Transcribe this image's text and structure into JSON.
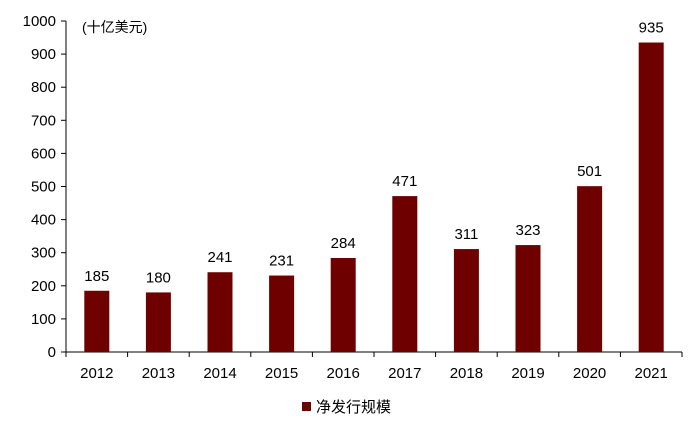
{
  "chart_data": {
    "type": "bar",
    "unit_label": "(十亿美元)",
    "categories": [
      "2012",
      "2013",
      "2014",
      "2015",
      "2016",
      "2017",
      "2018",
      "2019",
      "2020",
      "2021"
    ],
    "series": [
      {
        "name": "净发行规模",
        "values": [
          185,
          180,
          241,
          231,
          284,
          471,
          311,
          323,
          501,
          935
        ],
        "color": "#6e0000"
      }
    ],
    "ylim": [
      0,
      1000
    ],
    "yticks": [
      0,
      100,
      200,
      300,
      400,
      500,
      600,
      700,
      800,
      900,
      1000
    ],
    "grid": false,
    "legend_position": "bottom-center"
  }
}
